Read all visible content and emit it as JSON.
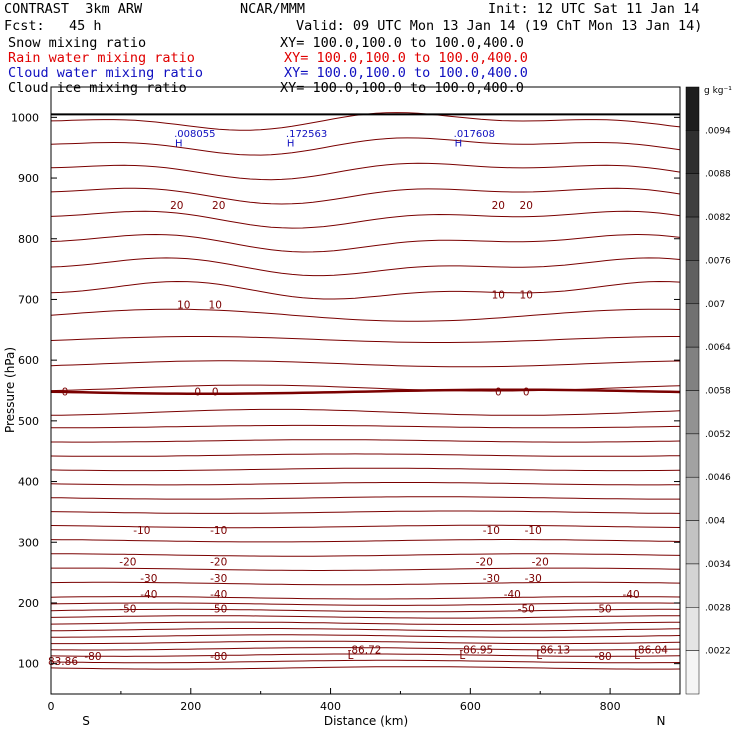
{
  "header": {
    "model": "CONTRAST  3km ARW",
    "org": "NCAR/MMM",
    "init": "Init: 12 UTC Sat 11 Jan 14",
    "fcst": "Fcst:   45 h",
    "valid": "Valid: 09 UTC Mon 13 Jan 14 (19 ChT Mon 13 Jan 14)"
  },
  "fields": [
    {
      "label": "Snow mixing ratio",
      "xy": "XY= 100.0,100.0 to 100.0,400.0",
      "color": "#000000"
    },
    {
      "label": "Rain water mixing ratio",
      "xy": "XY= 100.0,100.0 to 100.0,400.0",
      "color": "#e00000"
    },
    {
      "label": "Cloud water mixing ratio",
      "xy": "XY= 100.0,100.0 to 100.0,400.0",
      "color": "#1010c0"
    },
    {
      "label": "Cloud ice mixing ratio",
      "xy": "XY= 100.0,100.0 to 100.0,400.0",
      "color": "#000000"
    }
  ],
  "chart_data": {
    "type": "contour",
    "xlabel": "Distance (km)",
    "ylabel": "Pressure (hPa)",
    "xlim": [
      0,
      900
    ],
    "ylim": [
      1050,
      50
    ],
    "xticks": [
      "0",
      "200",
      "400",
      "600",
      "800"
    ],
    "yticks": [
      "100",
      "200",
      "300",
      "400",
      "500",
      "600",
      "700",
      "800",
      "900",
      "1000"
    ],
    "ends": {
      "left": "S",
      "right": "N"
    },
    "colorbar": {
      "unit": "g kg⁻¹",
      "labels": [
        ".0094",
        ".0088",
        ".0082",
        ".0076",
        ".007",
        ".0064",
        ".0058",
        ".0052",
        ".0046",
        ".004",
        ".0034",
        ".0028",
        ".0022"
      ]
    },
    "temperature_contours": [
      {
        "value": -80,
        "labels": [
          "-80",
          "-80",
          "-80"
        ]
      },
      {
        "value": -50,
        "labels": [
          "-50",
          "-50",
          "-50",
          "-50"
        ]
      },
      {
        "value": -40,
        "labels": [
          "-40",
          "-40",
          "-40",
          "-40"
        ]
      },
      {
        "value": -30,
        "labels": [
          "-30",
          "-30",
          "-30",
          "-30"
        ]
      },
      {
        "value": -20,
        "labels": [
          "-20",
          "-20",
          "-20",
          "-20"
        ]
      },
      {
        "value": -10,
        "labels": [
          "-10",
          "-10",
          "-10",
          "-10"
        ]
      },
      {
        "value": 0,
        "labels": [
          "0",
          "0",
          "0",
          "0",
          "0"
        ]
      },
      {
        "value": 10,
        "labels": [
          "10",
          "10",
          "10",
          "10"
        ]
      },
      {
        "value": 20,
        "labels": [
          "20",
          "20",
          "20",
          "20"
        ]
      }
    ],
    "lows": [
      {
        "x": 20,
        "value": "83.86"
      },
      {
        "x": 440,
        "value": "-86.72"
      },
      {
        "x": 600,
        "value": "-86.95"
      },
      {
        "x": 710,
        "value": "-86.13"
      },
      {
        "x": 850,
        "value": "-86.04"
      }
    ],
    "highs": [
      {
        "x": 200,
        "value": ".008055"
      },
      {
        "x": 360,
        "value": ".172563"
      },
      {
        "x": 600,
        "value": ".017608"
      }
    ]
  }
}
